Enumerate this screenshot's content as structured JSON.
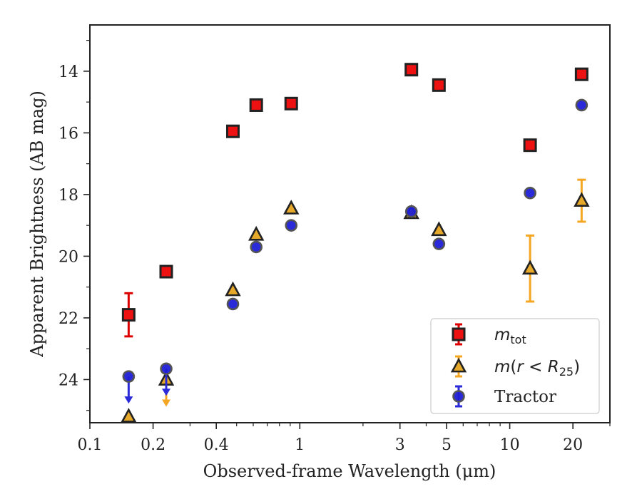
{
  "chart_data": {
    "type": "scatter",
    "xlabel": "Observed-frame Wavelength (μm)",
    "ylabel": "Apparent Brightness (AB mag)",
    "xscale": "log",
    "xlim": [
      0.1,
      30
    ],
    "ylim": [
      25.4,
      12.5
    ],
    "y_inverted": true,
    "xticks": [
      {
        "value": 0.1,
        "label": "0.1"
      },
      {
        "value": 0.2,
        "label": "0.2"
      },
      {
        "value": 0.4,
        "label": "0.4"
      },
      {
        "value": 1,
        "label": "1"
      },
      {
        "value": 3,
        "label": "3"
      },
      {
        "value": 5,
        "label": "5"
      },
      {
        "value": 10,
        "label": "10"
      },
      {
        "value": 20,
        "label": "20"
      }
    ],
    "yticks": [
      {
        "value": 14,
        "label": "14"
      },
      {
        "value": 16,
        "label": "16"
      },
      {
        "value": 18,
        "label": "18"
      },
      {
        "value": 20,
        "label": "20"
      },
      {
        "value": 22,
        "label": "22"
      },
      {
        "value": 24,
        "label": "24"
      }
    ],
    "grid": false,
    "legend_position": "lower-right",
    "series": [
      {
        "name": "m_tot",
        "legend_label": "m_tot",
        "marker": "square",
        "color": "#ee1111",
        "edge_color": "#222222",
        "errorbar_color": "#dd0000",
        "points": [
          {
            "x": 0.153,
            "y": 21.9,
            "yerr": 0.7
          },
          {
            "x": 0.231,
            "y": 20.5
          },
          {
            "x": 0.48,
            "y": 15.95
          },
          {
            "x": 0.62,
            "y": 15.1
          },
          {
            "x": 0.91,
            "y": 15.05
          },
          {
            "x": 3.4,
            "y": 13.95
          },
          {
            "x": 4.6,
            "y": 14.45
          },
          {
            "x": 12.5,
            "y": 16.4
          },
          {
            "x": 22.0,
            "y": 14.1
          }
        ]
      },
      {
        "name": "m(r < R25)",
        "legend_label": "m(r < R25)",
        "marker": "triangle",
        "color": "#e7a92a",
        "edge_color": "#222222",
        "errorbar_color": "#f5a623",
        "points": [
          {
            "x": 0.153,
            "y": 25.2,
            "upper_limit": false
          },
          {
            "x": 0.231,
            "y": 24.0,
            "upper_limit": true
          },
          {
            "x": 0.48,
            "y": 21.1
          },
          {
            "x": 0.62,
            "y": 19.3
          },
          {
            "x": 0.91,
            "y": 18.45
          },
          {
            "x": 3.4,
            "y": 18.6
          },
          {
            "x": 4.6,
            "y": 19.15
          },
          {
            "x": 12.5,
            "y": 20.4,
            "yerr": 1.07
          },
          {
            "x": 22.0,
            "y": 18.2,
            "yerr": 0.68
          }
        ]
      },
      {
        "name": "Tractor",
        "legend_label": "Tractor",
        "marker": "circle",
        "color": "#1f1fd6",
        "edge_color": "#555555",
        "errorbar_color": "#2a2ad8",
        "points": [
          {
            "x": 0.153,
            "y": 23.9,
            "upper_limit": true
          },
          {
            "x": 0.231,
            "y": 23.65,
            "upper_limit": true
          },
          {
            "x": 0.48,
            "y": 21.55
          },
          {
            "x": 0.62,
            "y": 19.7
          },
          {
            "x": 0.91,
            "y": 19.0
          },
          {
            "x": 3.4,
            "y": 18.55
          },
          {
            "x": 4.6,
            "y": 19.6
          },
          {
            "x": 12.5,
            "y": 17.95
          },
          {
            "x": 22.0,
            "y": 15.1
          }
        ]
      }
    ]
  }
}
